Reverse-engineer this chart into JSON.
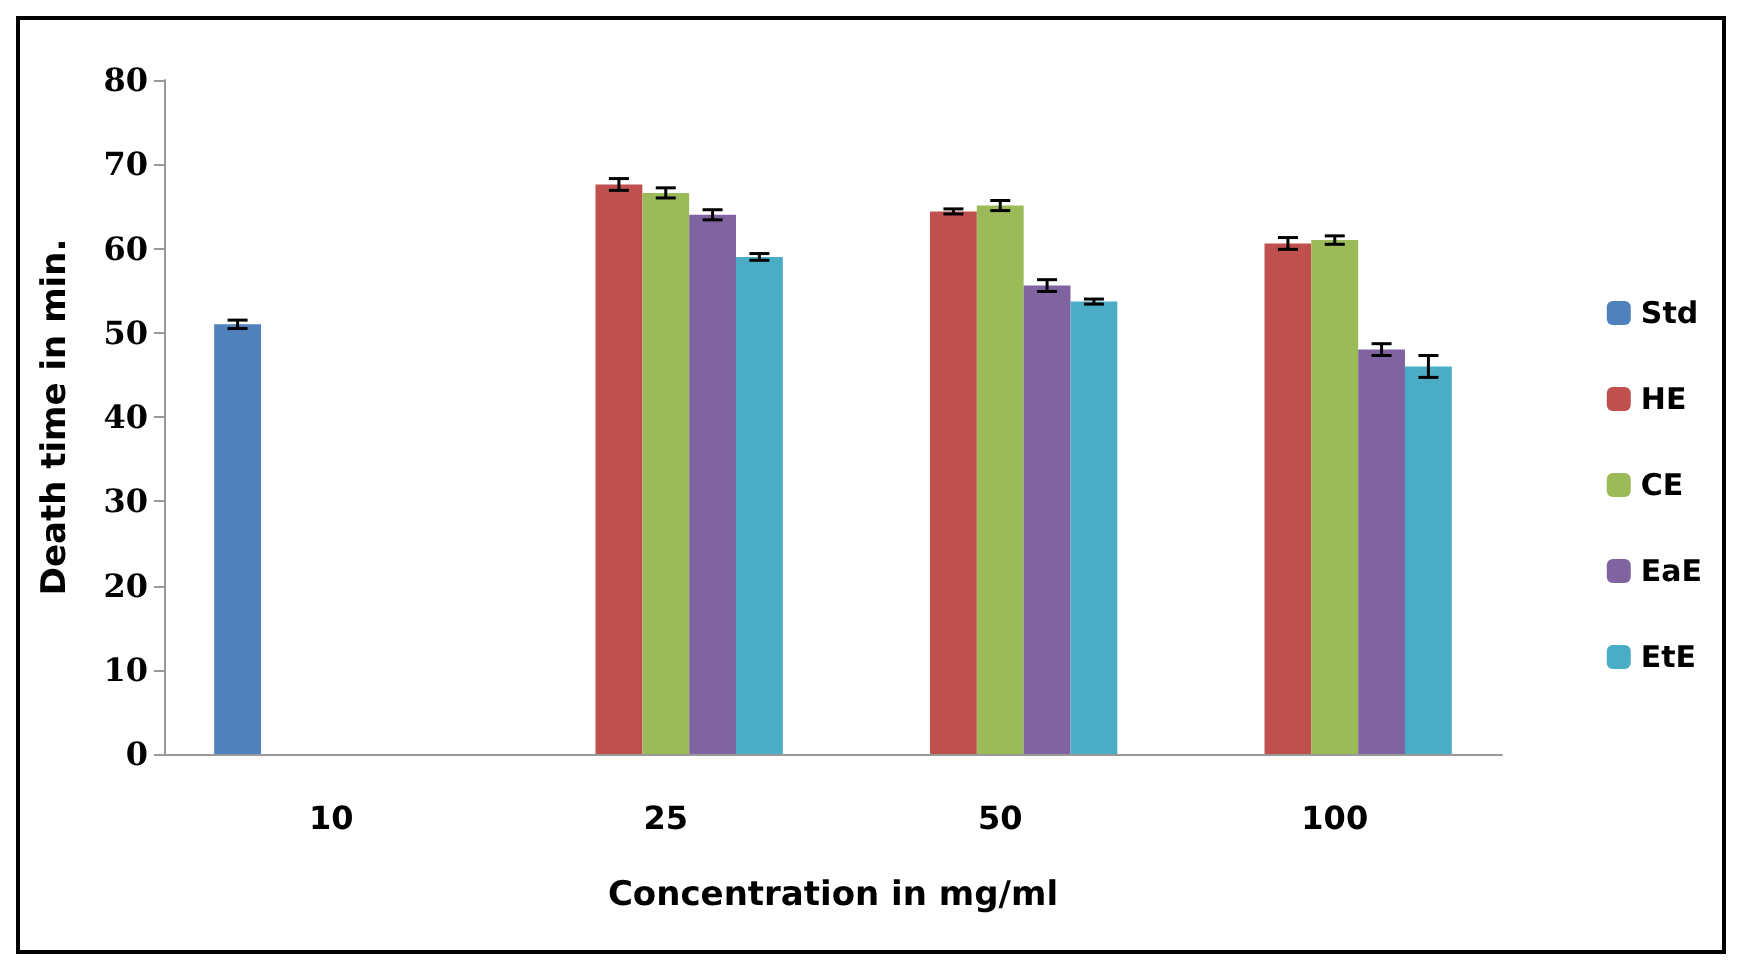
{
  "chart_data": {
    "type": "bar",
    "xlabel": "Concentration in mg/ml",
    "ylabel": "Death time in min.",
    "categories": [
      "10",
      "25",
      "50",
      "100"
    ],
    "series": [
      {
        "name": "Std",
        "color": "#4f81bd",
        "values": [
          51,
          null,
          null,
          null
        ],
        "errors": [
          0.5,
          null,
          null,
          null
        ]
      },
      {
        "name": "HE",
        "color": "#c0504d",
        "values": [
          null,
          67.6,
          64.4,
          60.6
        ],
        "errors": [
          null,
          0.7,
          0.3,
          0.7
        ]
      },
      {
        "name": "CE",
        "color": "#9bbb59",
        "values": [
          null,
          66.6,
          65.1,
          61
        ],
        "errors": [
          null,
          0.6,
          0.6,
          0.5
        ]
      },
      {
        "name": "EaE",
        "color": "#8064a2",
        "values": [
          null,
          64,
          55.6,
          48
        ],
        "errors": [
          null,
          0.6,
          0.7,
          0.7
        ]
      },
      {
        "name": "EtE",
        "color": "#4bacc6",
        "values": [
          null,
          59,
          53.7,
          46
        ],
        "errors": [
          null,
          0.4,
          0.3,
          1.3
        ]
      }
    ],
    "ylim": [
      0,
      80
    ],
    "yticks": [
      0,
      10,
      20,
      30,
      40,
      50,
      60,
      70,
      80
    ],
    "grid": false,
    "legend": "right"
  }
}
